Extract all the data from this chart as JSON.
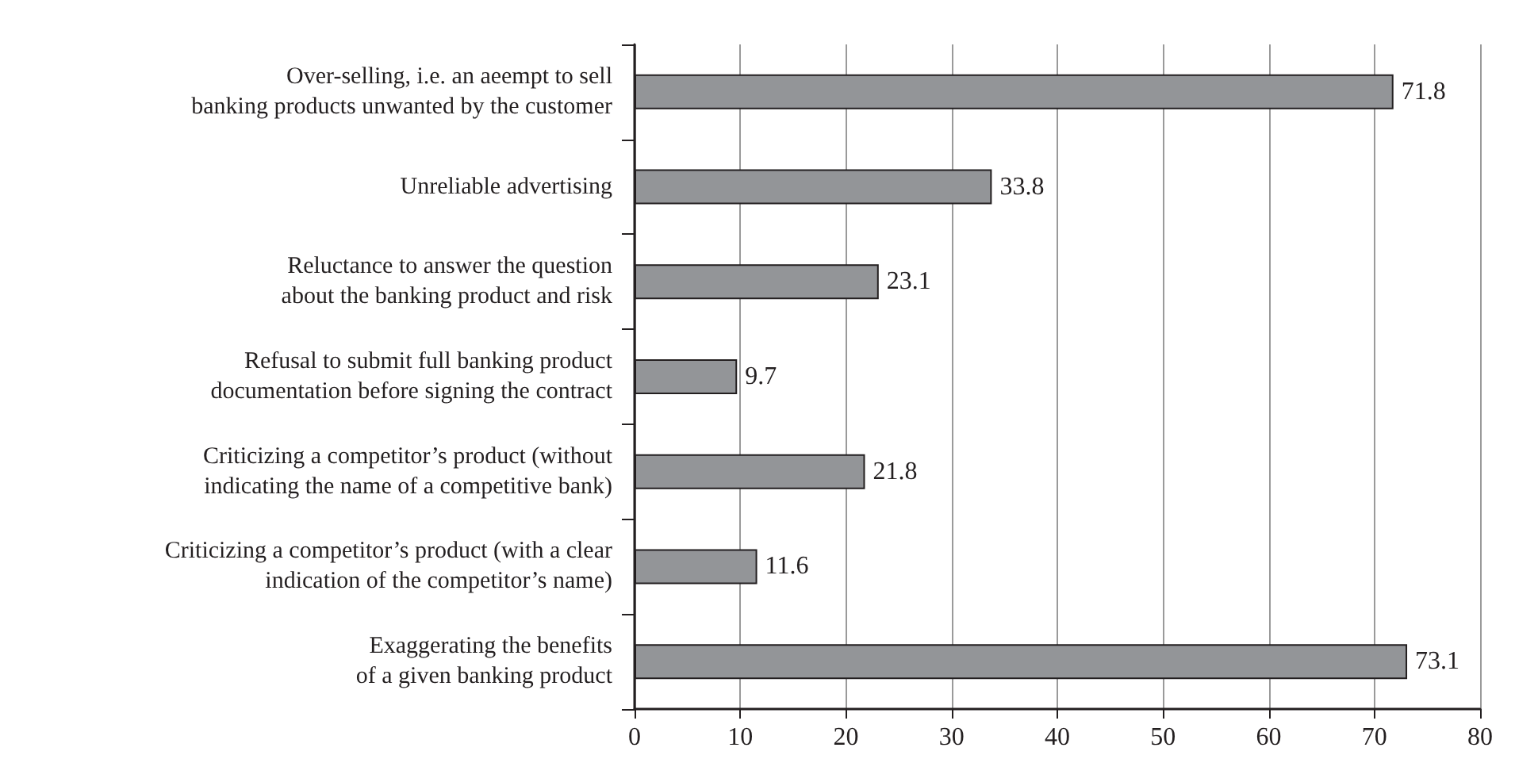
{
  "chart_data": {
    "type": "bar",
    "orientation": "horizontal",
    "categories": [
      "Over-selling, i.e. an aeempt to sell\nbanking products unwanted by the customer",
      "Unreliable advertising",
      "Reluctance to answer the question\nabout the banking product and risk",
      "Refusal to submit full banking product\ndocumentation before signing the contract",
      "Criticizing a competitor’s product (without\nindicating the name of a competitive bank)",
      "Criticizing a competitor’s product (with a clear\nindication of the competitor’s name)",
      "Exaggerating the benefits\nof a given banking product"
    ],
    "values": [
      71.8,
      33.8,
      23.1,
      9.7,
      21.8,
      11.6,
      73.1
    ],
    "color": "#939598",
    "xlim": [
      0,
      80
    ],
    "xticks": [
      0,
      10,
      20,
      30,
      40,
      50,
      60,
      70,
      80
    ],
    "grid": "x",
    "data_labels": true
  }
}
